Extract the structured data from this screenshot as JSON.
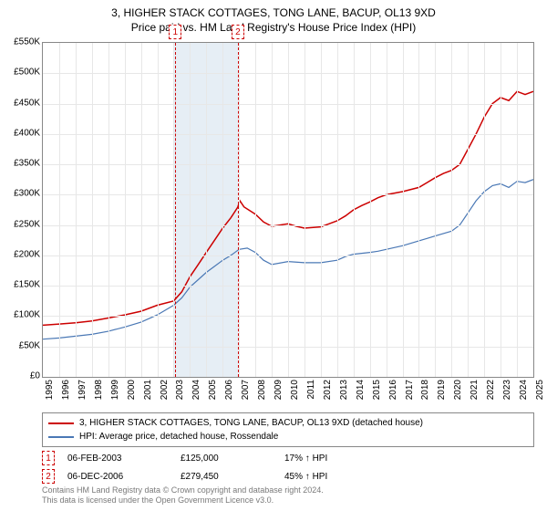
{
  "title_line1": "3, HIGHER STACK COTTAGES, TONG LANE, BACUP, OL13 9XD",
  "title_line2": "Price paid vs. HM Land Registry's House Price Index (HPI)",
  "chart": {
    "type": "line",
    "background_color": "#ffffff",
    "grid_color": "#e7e7e7",
    "axis_color": "#888888",
    "x_years": [
      "1995",
      "1996",
      "1997",
      "1998",
      "1999",
      "2000",
      "2001",
      "2002",
      "2003",
      "2004",
      "2005",
      "2006",
      "2007",
      "2008",
      "2009",
      "2010",
      "2011",
      "2012",
      "2013",
      "2014",
      "2015",
      "2016",
      "2017",
      "2018",
      "2019",
      "2020",
      "2021",
      "2022",
      "2023",
      "2024",
      "2025"
    ],
    "xlim": [
      1995,
      2025
    ],
    "ylim": [
      0,
      550000
    ],
    "ytick_step": 50000,
    "ytick_labels": [
      "£0",
      "£50K",
      "£100K",
      "£150K",
      "£200K",
      "£250K",
      "£300K",
      "£350K",
      "£400K",
      "£450K",
      "£500K",
      "£550K"
    ],
    "shade_band": {
      "start": 2003,
      "end": 2006.92,
      "color": "#e6eef5"
    },
    "marker_dash_color": "#cc0000",
    "label_fontsize": 10,
    "series": [
      {
        "name": "property",
        "legend": "3, HIGHER STACK COTTAGES, TONG LANE, BACUP, OL13 9XD (detached house)",
        "color": "#cc0000",
        "line_width": 1.5,
        "points": [
          [
            1995,
            85000
          ],
          [
            1996,
            87000
          ],
          [
            1997,
            89000
          ],
          [
            1998,
            92000
          ],
          [
            1999,
            97000
          ],
          [
            2000,
            102000
          ],
          [
            2001,
            108000
          ],
          [
            2002,
            118000
          ],
          [
            2003,
            125000
          ],
          [
            2003.5,
            140000
          ],
          [
            2004,
            165000
          ],
          [
            2004.5,
            185000
          ],
          [
            2005,
            205000
          ],
          [
            2005.5,
            225000
          ],
          [
            2006,
            245000
          ],
          [
            2006.5,
            262000
          ],
          [
            2006.92,
            279450
          ],
          [
            2007.05,
            290000
          ],
          [
            2007.3,
            280000
          ],
          [
            2008,
            268000
          ],
          [
            2008.5,
            255000
          ],
          [
            2009,
            248000
          ],
          [
            2010,
            252000
          ],
          [
            2010.5,
            248000
          ],
          [
            2011,
            245000
          ],
          [
            2012,
            247000
          ],
          [
            2012.5,
            252000
          ],
          [
            2013,
            257000
          ],
          [
            2013.5,
            265000
          ],
          [
            2014,
            275000
          ],
          [
            2014.5,
            282000
          ],
          [
            2015,
            288000
          ],
          [
            2015.5,
            295000
          ],
          [
            2016,
            300000
          ],
          [
            2017,
            305000
          ],
          [
            2018,
            312000
          ],
          [
            2018.5,
            320000
          ],
          [
            2019,
            328000
          ],
          [
            2019.5,
            335000
          ],
          [
            2020,
            340000
          ],
          [
            2020.5,
            350000
          ],
          [
            2021,
            375000
          ],
          [
            2021.5,
            400000
          ],
          [
            2022,
            428000
          ],
          [
            2022.5,
            450000
          ],
          [
            2023,
            460000
          ],
          [
            2023.5,
            455000
          ],
          [
            2024,
            470000
          ],
          [
            2024.5,
            465000
          ],
          [
            2025,
            470000
          ]
        ]
      },
      {
        "name": "hpi",
        "legend": "HPI: Average price, detached house, Rossendale",
        "color": "#4a78b5",
        "line_width": 1.2,
        "points": [
          [
            1995,
            62000
          ],
          [
            1996,
            64000
          ],
          [
            1997,
            67000
          ],
          [
            1998,
            70000
          ],
          [
            1999,
            75000
          ],
          [
            2000,
            82000
          ],
          [
            2001,
            90000
          ],
          [
            2002,
            102000
          ],
          [
            2003,
            118000
          ],
          [
            2003.5,
            130000
          ],
          [
            2004,
            148000
          ],
          [
            2004.5,
            160000
          ],
          [
            2005,
            172000
          ],
          [
            2005.5,
            182000
          ],
          [
            2006,
            192000
          ],
          [
            2006.5,
            200000
          ],
          [
            2007,
            210000
          ],
          [
            2007.5,
            212000
          ],
          [
            2008,
            205000
          ],
          [
            2008.5,
            192000
          ],
          [
            2009,
            185000
          ],
          [
            2010,
            190000
          ],
          [
            2011,
            188000
          ],
          [
            2012,
            188000
          ],
          [
            2013,
            192000
          ],
          [
            2013.5,
            198000
          ],
          [
            2014,
            202000
          ],
          [
            2015,
            205000
          ],
          [
            2015.5,
            207000
          ],
          [
            2016,
            210000
          ],
          [
            2017,
            216000
          ],
          [
            2018,
            224000
          ],
          [
            2018.5,
            228000
          ],
          [
            2019,
            232000
          ],
          [
            2020,
            240000
          ],
          [
            2020.5,
            250000
          ],
          [
            2021,
            270000
          ],
          [
            2021.5,
            290000
          ],
          [
            2022,
            305000
          ],
          [
            2022.5,
            315000
          ],
          [
            2023,
            318000
          ],
          [
            2023.5,
            312000
          ],
          [
            2024,
            322000
          ],
          [
            2024.5,
            320000
          ],
          [
            2025,
            325000
          ]
        ]
      }
    ],
    "transactions": [
      {
        "id": "1",
        "year": 2003.1,
        "date": "06-FEB-2003",
        "price": "£125,000",
        "pct": "17% ↑ HPI"
      },
      {
        "id": "2",
        "year": 2006.93,
        "date": "06-DEC-2006",
        "price": "£279,450",
        "pct": "45% ↑ HPI"
      }
    ]
  },
  "footer_line1": "Contains HM Land Registry data © Crown copyright and database right 2024.",
  "footer_line2": "This data is licensed under the Open Government Licence v3.0."
}
